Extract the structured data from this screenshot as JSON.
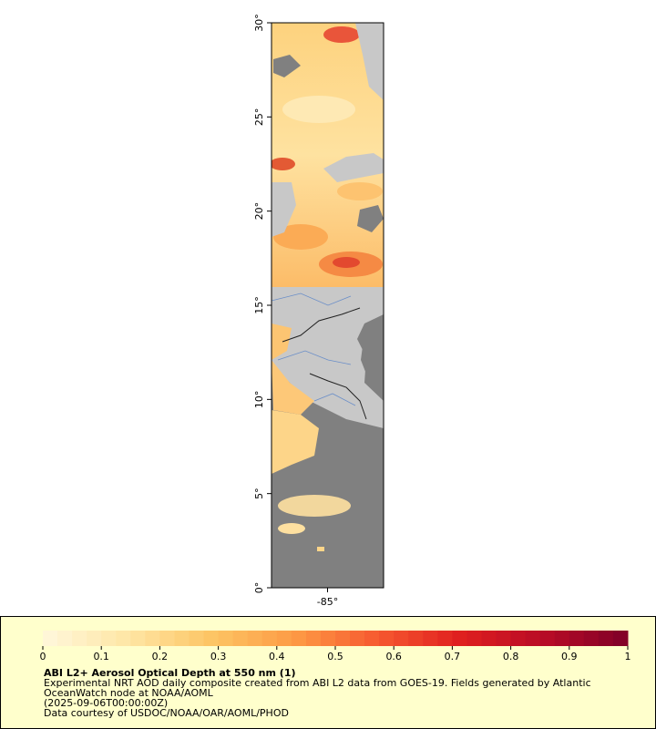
{
  "map": {
    "lat_range": [
      0,
      30
    ],
    "lon_range": [
      -88,
      -82
    ],
    "lat_ticks": [
      {
        "value": 0,
        "label": "0°"
      },
      {
        "value": 5,
        "label": "5°"
      },
      {
        "value": 10,
        "label": "10°"
      },
      {
        "value": 15,
        "label": "15°"
      },
      {
        "value": 20,
        "label": "20°"
      },
      {
        "value": 25,
        "label": "25°"
      },
      {
        "value": 30,
        "label": "30°"
      }
    ],
    "lon_ticks": [
      {
        "value": -85,
        "label": "-85°"
      }
    ]
  },
  "colorbar": {
    "range": [
      0,
      1
    ],
    "ticks": [
      0,
      0.1,
      0.2,
      0.3,
      0.4,
      0.5,
      0.6,
      0.7,
      0.8,
      0.9,
      1
    ],
    "colors": [
      "#fff7dc",
      "#fee6a6",
      "#fdc665",
      "#fd9b45",
      "#f75a30",
      "#df1f1f",
      "#b80b26",
      "#7f0028"
    ]
  },
  "legend": {
    "title": "ABI L2+ Aerosol Optical Depth at 550 nm (1)",
    "lines": [
      "Experimental NRT AOD daily composite created from ABI L2 data from GOES-19. Fields generated by Atlantic",
      "OceanWatch node at NOAA/AOML",
      "(2025-09-06T00:00:00Z)",
      "Data courtesy of USDOC/NOAA/OAR/AOML/PHOD"
    ]
  }
}
